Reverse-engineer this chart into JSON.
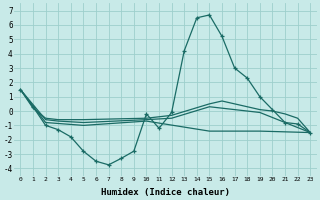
{
  "xlabel": "Humidex (Indice chaleur)",
  "bg_color": "#c8eae8",
  "grid_color": "#9ecfcc",
  "line_color": "#1a6b65",
  "xlim": [
    -0.5,
    23.5
  ],
  "ylim": [
    -4.5,
    7.5
  ],
  "xtick_vals": [
    0,
    1,
    2,
    3,
    4,
    5,
    6,
    7,
    8,
    9,
    10,
    11,
    12,
    13,
    14,
    15,
    16,
    17,
    18,
    19,
    20,
    21,
    22,
    23
  ],
  "ytick_vals": [
    -4,
    -3,
    -2,
    -1,
    0,
    1,
    2,
    3,
    4,
    5,
    6,
    7
  ],
  "main_x": [
    0,
    1,
    2,
    3,
    4,
    5,
    6,
    7,
    8,
    9,
    10,
    11,
    12,
    13,
    14,
    15,
    16,
    17,
    18,
    19,
    20,
    21,
    22,
    23
  ],
  "main_y": [
    1.5,
    0.3,
    -1.0,
    -1.3,
    -1.8,
    -2.8,
    -3.5,
    -3.75,
    -3.3,
    -2.8,
    -0.2,
    -1.2,
    -0.1,
    4.2,
    6.5,
    6.7,
    5.2,
    3.0,
    2.3,
    1.0,
    0.1,
    -0.8,
    -0.9,
    -1.5
  ],
  "trend1_x": [
    0,
    1,
    2,
    3,
    5,
    10,
    12,
    15,
    16,
    19,
    20,
    21,
    22,
    23
  ],
  "trend1_y": [
    1.5,
    0.2,
    -0.5,
    -0.6,
    -0.6,
    -0.5,
    -0.3,
    0.5,
    0.7,
    0.1,
    0.0,
    -0.2,
    -0.5,
    -1.5
  ],
  "trend2_x": [
    0,
    2,
    3,
    5,
    10,
    12,
    15,
    19,
    23
  ],
  "trend2_y": [
    1.5,
    -0.6,
    -0.7,
    -0.8,
    -0.6,
    -0.5,
    0.3,
    -0.1,
    -1.5
  ],
  "trend3_x": [
    0,
    2,
    5,
    10,
    15,
    19,
    23
  ],
  "trend3_y": [
    1.5,
    -0.8,
    -1.0,
    -0.7,
    -1.4,
    -1.4,
    -1.5
  ]
}
